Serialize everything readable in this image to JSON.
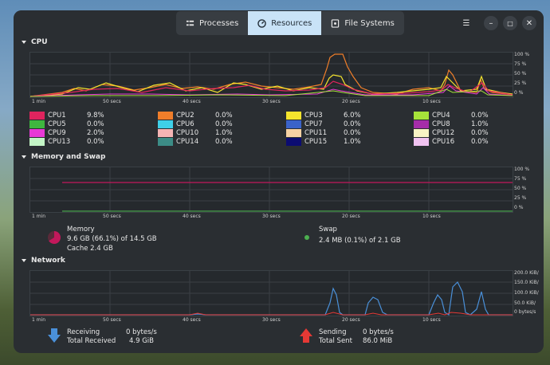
{
  "tabs": [
    {
      "label": "Processes",
      "icon": "processes-icon",
      "active": false
    },
    {
      "label": "Resources",
      "icon": "resources-icon",
      "active": true
    },
    {
      "label": "File Systems",
      "icon": "filesystems-icon",
      "active": false
    }
  ],
  "sections": {
    "cpu": "CPU",
    "memory": "Memory and Swap",
    "network": "Network"
  },
  "time_ticks": [
    "1 min",
    "50 secs",
    "40 secs",
    "30 secs",
    "20 secs",
    "10 secs"
  ],
  "pct_ticks": [
    "100 %",
    "75 %",
    "50 %",
    "25 %",
    "0 %"
  ],
  "net_ticks": [
    "200.0 KiB/",
    "150.0 KiB/",
    "100.0 KiB/",
    "50.0 KiB/",
    "0 bytes/s"
  ],
  "cpus": [
    {
      "name": "CPU1",
      "value": "9.8%",
      "color": "#e0245e"
    },
    {
      "name": "CPU2",
      "value": "0.0%",
      "color": "#f07e2a"
    },
    {
      "name": "CPU3",
      "value": "6.0%",
      "color": "#f5e42d"
    },
    {
      "name": "CPU4",
      "value": "0.0%",
      "color": "#a6e33a"
    },
    {
      "name": "CPU5",
      "value": "0.0%",
      "color": "#3fb63f"
    },
    {
      "name": "CPU6",
      "value": "0.0%",
      "color": "#3fd0e8"
    },
    {
      "name": "CPU7",
      "value": "0.0%",
      "color": "#3b63c9"
    },
    {
      "name": "CPU8",
      "value": "1.0%",
      "color": "#a52da8"
    },
    {
      "name": "CPU9",
      "value": "2.0%",
      "color": "#e83ad6"
    },
    {
      "name": "CPU10",
      "value": "1.0%",
      "color": "#f4b4b4"
    },
    {
      "name": "CPU11",
      "value": "0.0%",
      "color": "#f6d2a4"
    },
    {
      "name": "CPU12",
      "value": "0.0%",
      "color": "#f8f3c4"
    },
    {
      "name": "CPU13",
      "value": "0.0%",
      "color": "#c3f5c6"
    },
    {
      "name": "CPU14",
      "value": "0.0%",
      "color": "#3c8c86"
    },
    {
      "name": "CPU15",
      "value": "1.0%",
      "color": "#0c0c72"
    },
    {
      "name": "CPU16",
      "value": "0.0%",
      "color": "#f0c2f0"
    }
  ],
  "memory": {
    "label": "Memory",
    "detail": "9.6 GB (66.1%) of 14.5 GB",
    "cache": "Cache 2.4 GB",
    "color": "#c2185b",
    "percent": 66.1
  },
  "swap": {
    "label": "Swap",
    "detail": "2.4 MB (0.1%) of 2.1 GB",
    "color": "#4caf50",
    "percent": 0.1
  },
  "network": {
    "receiving_label": "Receiving",
    "receiving_value": "0 bytes/s",
    "total_received_label": "Total Received",
    "total_received_value": "4.9 GiB",
    "sending_label": "Sending",
    "sending_value": "0 bytes/s",
    "total_sent_label": "Total Sent",
    "total_sent_value": "86.0 MiB",
    "receive_color": "#4a90d9",
    "send_color": "#e53935"
  }
}
